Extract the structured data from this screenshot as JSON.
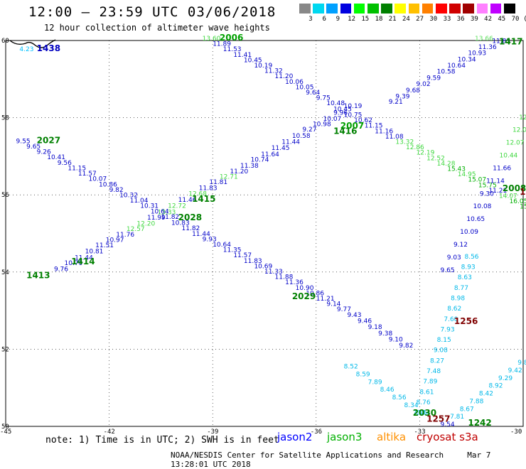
{
  "header": {
    "title": "12:00 – 23:59 UTC 03/06/2018",
    "subtitle": "12 hour collection of altimeter wave heights"
  },
  "color_scale": {
    "labels": [
      "3",
      "6",
      "9",
      "12",
      "15",
      "18",
      "21",
      "24",
      "27",
      "30",
      "33",
      "36",
      "39",
      "42",
      "45",
      "70",
      "(ft)"
    ],
    "colors": [
      "#888888",
      "#00d8f0",
      "#00a0ff",
      "#0000e0",
      "#00ff00",
      "#00c000",
      "#008000",
      "#ffff00",
      "#ffc000",
      "#ff8000",
      "#ff0000",
      "#d00000",
      "#a00000",
      "#ff80ff",
      "#c000ff",
      "#000000"
    ]
  },
  "axes": {
    "lat_labels": [
      "60",
      "58",
      "56",
      "54",
      "52",
      "50"
    ],
    "lon_labels": [
      "-45",
      "-42",
      "-39",
      "-36",
      "-33",
      "-30"
    ]
  },
  "map": {
    "tracks": [
      {
        "id": "2006",
        "satellite": "jason3",
        "color": "#00a000",
        "label": "2006",
        "points": [
          [
            "13.60",
            -39.3,
            60.0
          ],
          [
            "11.89",
            -39.0,
            59.86
          ],
          [
            "11.53",
            -38.7,
            59.72
          ],
          [
            "11.41",
            -38.4,
            59.58
          ],
          [
            "10.45",
            -38.1,
            59.44
          ],
          [
            "10.19",
            -37.8,
            59.3
          ],
          [
            "11.32",
            -37.5,
            59.16
          ],
          [
            "11.20",
            -37.2,
            59.02
          ],
          [
            "10.06",
            -36.9,
            58.88
          ],
          [
            "10.05",
            -36.6,
            58.74
          ],
          [
            "9.64",
            -36.3,
            58.6
          ],
          [
            "9.75",
            -36.0,
            58.46
          ],
          [
            "10.48",
            -35.7,
            58.32
          ],
          [
            "10.45",
            -35.5,
            58.17
          ],
          [
            "10.75",
            -35.2,
            58.02
          ],
          [
            "10.62",
            -34.9,
            57.88
          ],
          [
            "11.15",
            -34.6,
            57.74
          ],
          [
            "11.16",
            -34.3,
            57.6
          ],
          [
            "11.08",
            -34.0,
            57.46
          ],
          [
            "13.32",
            -33.7,
            57.32
          ],
          [
            "12.86",
            -33.4,
            57.18
          ],
          [
            "12.19",
            -33.1,
            57.04
          ],
          [
            "12.52",
            -32.8,
            56.9
          ],
          [
            "14.28",
            -32.5,
            56.76
          ],
          [
            "15.43",
            -32.2,
            56.62
          ],
          [
            "14.95",
            -31.9,
            56.48
          ],
          [
            "15.07",
            -31.6,
            56.34
          ],
          [
            "15.75",
            -31.3,
            56.2
          ],
          [
            "11.21",
            -31.0,
            56.06
          ],
          [
            "14.07",
            -30.7,
            55.92
          ],
          [
            "16.05",
            -30.4,
            55.78
          ],
          [
            "15.1",
            -30.1,
            55.64
          ]
        ],
        "label_pos": [
          -38.8,
          60.0
        ],
        "label_color": "#00a000"
      },
      {
        "id": "2007",
        "satellite": "jason2",
        "color": "#0000c0",
        "label": "2007",
        "points": [
          [
            "11.83",
            -30.9,
            59.94
          ],
          [
            "11.36",
            -31.3,
            59.78
          ],
          [
            "10.93",
            -31.6,
            59.62
          ],
          [
            "10.34",
            -31.9,
            59.46
          ],
          [
            "10.64",
            -32.2,
            59.3
          ],
          [
            "10.58",
            -32.5,
            59.14
          ],
          [
            "9.59",
            -32.8,
            58.98
          ],
          [
            "9.02",
            -33.1,
            58.82
          ],
          [
            "9.68",
            -33.4,
            58.66
          ],
          [
            "9.39",
            -33.7,
            58.5
          ],
          [
            "9.21",
            -33.9,
            58.36
          ],
          [
            "10.19",
            -35.2,
            58.25
          ],
          [
            "9.96",
            -35.5,
            58.08
          ],
          [
            "10.07",
            -35.8,
            57.92
          ],
          [
            "10.98",
            -36.1,
            57.78
          ],
          [
            "9.27",
            -36.4,
            57.64
          ],
          [
            "10.58",
            -36.7,
            57.48
          ],
          [
            "11.44",
            -37.0,
            57.32
          ],
          [
            "11.45",
            -37.3,
            57.16
          ],
          [
            "11.64",
            -37.6,
            57.0
          ],
          [
            "10.74",
            -37.9,
            56.86
          ],
          [
            "11.38",
            -38.2,
            56.7
          ],
          [
            "11.20",
            -38.5,
            56.56
          ],
          [
            "12.71",
            -38.8,
            56.42
          ],
          [
            "11.81",
            -39.1,
            56.28
          ],
          [
            "11.83",
            -39.4,
            56.12
          ],
          [
            "12.68",
            -39.7,
            55.98
          ],
          [
            "11.46",
            -40.0,
            55.82
          ],
          [
            "12.72",
            -40.3,
            55.66
          ],
          [
            "13.33",
            -40.6,
            55.5
          ],
          [
            "11.99",
            -40.9,
            55.36
          ],
          [
            "12.20",
            -41.2,
            55.2
          ],
          [
            "12.57",
            -41.5,
            55.06
          ],
          [
            "11.76",
            -41.8,
            54.92
          ],
          [
            "10.97",
            -42.1,
            54.78
          ],
          [
            "11.51",
            -42.4,
            54.64
          ],
          [
            "10.81",
            -42.7,
            54.48
          ],
          [
            "11.44",
            -43.0,
            54.32
          ],
          [
            "10.70",
            -43.3,
            54.18
          ],
          [
            "9.76",
            -43.6,
            54.02
          ]
        ],
        "label_pos": [
          -35.3,
          57.72
        ],
        "label_color": "#00a000"
      },
      {
        "id": "2027",
        "satellite": "jason2",
        "color": "#0000c0",
        "label": "2027",
        "points": [
          [
            "9.55",
            -44.7,
            57.34
          ],
          [
            "9.65",
            -44.4,
            57.2
          ],
          [
            "9.26",
            -44.1,
            57.06
          ],
          [
            "10.41",
            -43.8,
            56.92
          ],
          [
            "9.56",
            -43.5,
            56.78
          ],
          [
            "11.15",
            -43.2,
            56.64
          ],
          [
            "11.57",
            -42.9,
            56.5
          ],
          [
            "10.07",
            -42.6,
            56.36
          ],
          [
            "10.86",
            -42.3,
            56.22
          ],
          [
            "9.82",
            -42.0,
            56.08
          ],
          [
            "10.32",
            -41.7,
            55.94
          ],
          [
            "11.04",
            -41.4,
            55.8
          ],
          [
            "10.31",
            -41.1,
            55.66
          ],
          [
            "10.64",
            -40.8,
            55.52
          ],
          [
            "11.82",
            -40.5,
            55.38
          ],
          [
            "10.83",
            -40.2,
            55.22
          ],
          [
            "11.82",
            -39.9,
            55.08
          ],
          [
            "11.44",
            -39.6,
            54.94
          ],
          [
            "9.93",
            -39.3,
            54.8
          ],
          [
            "10.64",
            -39.0,
            54.66
          ],
          [
            "11.35",
            -38.7,
            54.52
          ],
          [
            "11.57",
            -38.4,
            54.38
          ],
          [
            "11.83",
            -38.1,
            54.24
          ],
          [
            "10.69",
            -37.8,
            54.1
          ],
          [
            "11.33",
            -37.5,
            53.96
          ],
          [
            "11.88",
            -37.2,
            53.82
          ],
          [
            "11.36",
            -36.9,
            53.68
          ],
          [
            "10.90",
            -36.6,
            53.54
          ],
          [
            "10.86",
            -36.3,
            53.4
          ],
          [
            "11.21",
            -36.0,
            53.26
          ],
          [
            "9.14",
            -35.7,
            53.12
          ],
          [
            "9.77",
            -35.4,
            52.98
          ],
          [
            "9.43",
            -35.1,
            52.84
          ],
          [
            "9.46",
            -34.8,
            52.68
          ],
          [
            "9.18",
            -34.5,
            52.52
          ],
          [
            "9.38",
            -34.2,
            52.36
          ],
          [
            "9.10",
            -33.9,
            52.2
          ],
          [
            "9.82",
            -33.6,
            52.04
          ]
        ],
        "label_pos": [
          -44.1,
          57.34
        ],
        "label_color": "#008000"
      }
    ],
    "track_labels": [
      {
        "text": "1438",
        "lon": -44.1,
        "lat": 59.72,
        "color": "#0000c0"
      },
      {
        "text": "4.23",
        "lon": -44.6,
        "lat": 59.72,
        "color": "#00c0ff"
      },
      {
        "text": "1417",
        "lon": -30.7,
        "lat": 59.9,
        "color": "#008000"
      },
      {
        "text": "13.66",
        "lon": -31.4,
        "lat": 60.0,
        "color": "#60e060"
      },
      {
        "text": "1416",
        "lon": -35.5,
        "lat": 57.58,
        "color": "#008000"
      },
      {
        "text": "1415",
        "lon": -39.6,
        "lat": 55.82,
        "color": "#008000"
      },
      {
        "text": "2028",
        "lon": -40.0,
        "lat": 55.34,
        "color": "#008000"
      },
      {
        "text": "1414",
        "lon": -43.1,
        "lat": 54.2,
        "color": "#008000"
      },
      {
        "text": "1413",
        "lon": -44.4,
        "lat": 53.84,
        "color": "#008000"
      },
      {
        "text": "2029",
        "lon": -36.7,
        "lat": 53.3,
        "color": "#008000"
      },
      {
        "text": "2030",
        "lon": -33.2,
        "lat": 50.28,
        "color": "#008000"
      },
      {
        "text": "1257",
        "lon": -32.8,
        "lat": 50.12,
        "color": "#800000"
      },
      {
        "text": "1242",
        "lon": -31.6,
        "lat": 50.02,
        "color": "#008000"
      },
      {
        "text": "1256",
        "lon": -32.0,
        "lat": 52.65,
        "color": "#800000"
      },
      {
        "text": "2008",
        "lon": -30.6,
        "lat": 56.1,
        "color": "#008000"
      },
      {
        "text": "12",
        "lon": -30.1,
        "lat": 56.0,
        "color": "#800000"
      }
    ]
  },
  "footer": {
    "note": "note: 1) Time is in UTC; 2) SWH is in feet",
    "legend": [
      {
        "name": "jason2",
        "color": "#0000ff"
      },
      {
        "name": "jason3",
        "color": "#00b000"
      },
      {
        "name": "altika",
        "color": "#ff9000"
      },
      {
        "name": "cryosat s3a",
        "color": "#c00000"
      }
    ],
    "credit": "NOAA/NESDIS Center for Satellite Applications and Research",
    "timestamp": "Mar  7 13:28:01 UTC 2018"
  }
}
